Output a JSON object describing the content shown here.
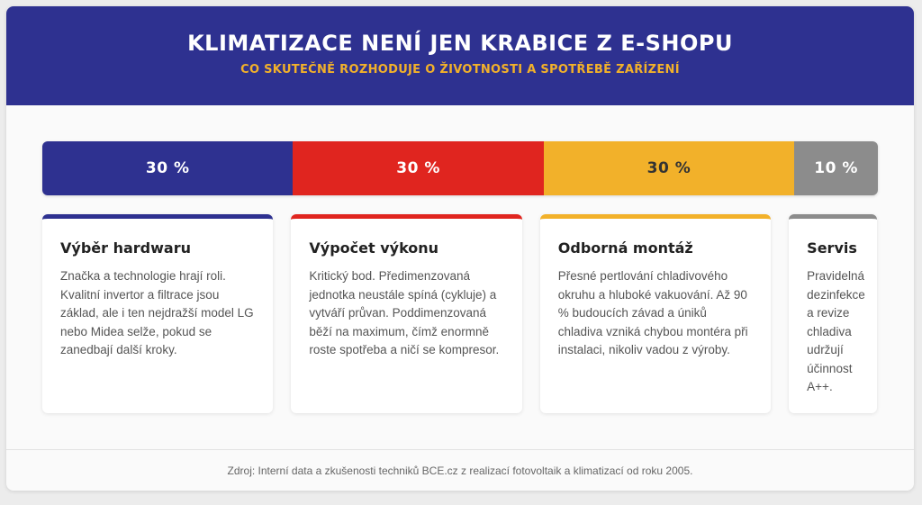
{
  "header": {
    "title": "KLIMATIZACE NENÍ JEN KRABICE Z E-SHOPU",
    "subtitle": "CO SKUTEČNĚ ROZHODUJE O ŽIVOTNOSTI A SPOTŘEBĚ ZAŘÍZENÍ"
  },
  "colors": {
    "header_bg": "#2e3190",
    "subtitle": "#f2b12a"
  },
  "chart_data": {
    "type": "bar",
    "orientation": "horizontal-stacked",
    "title": "",
    "unit": "%",
    "ylim": [
      0,
      100
    ],
    "series": [
      {
        "label": "30 %",
        "value": 30,
        "color": "#2e3190",
        "text_color": "#ffffff"
      },
      {
        "label": "30 %",
        "value": 30,
        "color": "#e0251f",
        "text_color": "#ffffff"
      },
      {
        "label": "30 %",
        "value": 30,
        "color": "#f2b12a",
        "text_color": "#333333"
      },
      {
        "label": "10 %",
        "value": 10,
        "color": "#8c8c8c",
        "text_color": "#ffffff"
      }
    ]
  },
  "cards": [
    {
      "title": "Výběr hardwaru",
      "text": "Značka a technologie hrají roli. Kvalitní invertor a filtrace jsou základ, ale i ten nejdražší model LG nebo Midea selže, pokud se zanedbají další kroky."
    },
    {
      "title": "Výpočet výkonu",
      "text": "Kritický bod. Předimenzovaná jednotka neustále spíná (cykluje) a vytváří průvan. Poddimenzovaná běží na maximum, čímž enormně roste spotřeba a ničí se kompresor."
    },
    {
      "title": "Odborná montáž",
      "text": "Přesné pertlování chladivového okruhu a hluboké vakuování. Až 90 % budoucích závad a úniků chladiva vzniká chybou montéra při instalaci, nikoliv vadou z výroby."
    },
    {
      "title": "Servis",
      "text": "Pravidelná dezinfekce a revize chladiva udržují účinnost A++."
    }
  ],
  "footer": {
    "source": "Zdroj: Interní data a zkušenosti techniků BCE.cz z realizací fotovoltaik a klimatizací od roku 2005."
  }
}
